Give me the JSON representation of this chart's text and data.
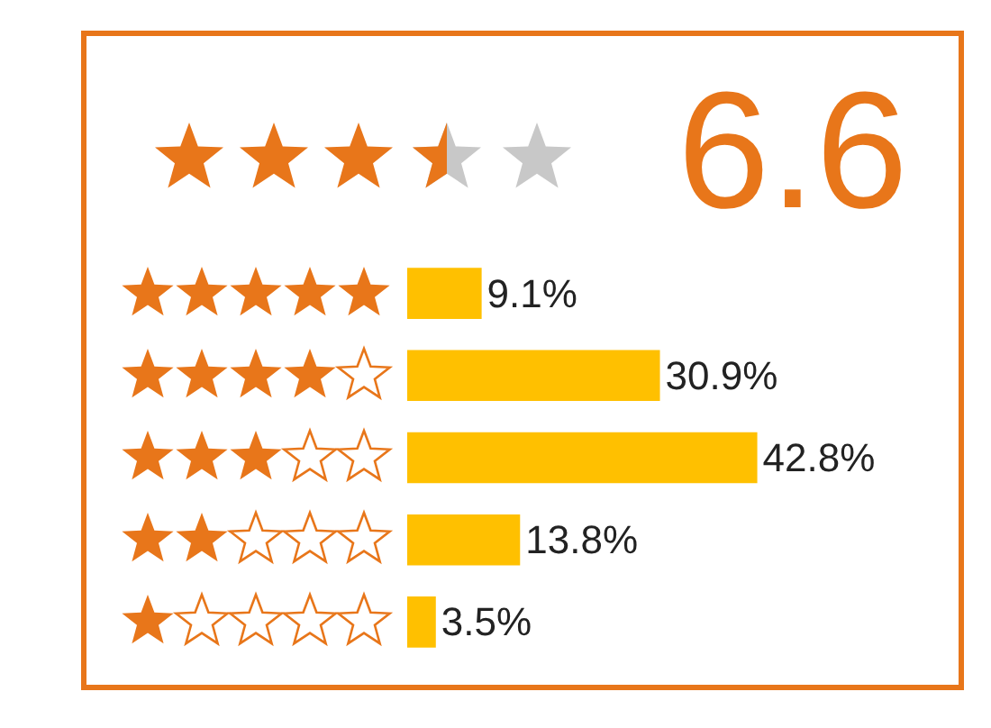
{
  "chart_data": {
    "type": "bar",
    "orientation": "horizontal",
    "categories": [
      null,
      null,
      null,
      null,
      null
    ],
    "values": [
      9.1,
      30.9,
      42.8,
      13.8,
      3.5
    ],
    "value_labels": [
      "9.1%",
      "30.9%",
      "42.8%",
      "13.8%",
      "3.5%"
    ],
    "color": "#ffc000",
    "annotations": [
      "6.6"
    ],
    "tick_labels": false
  }
}
